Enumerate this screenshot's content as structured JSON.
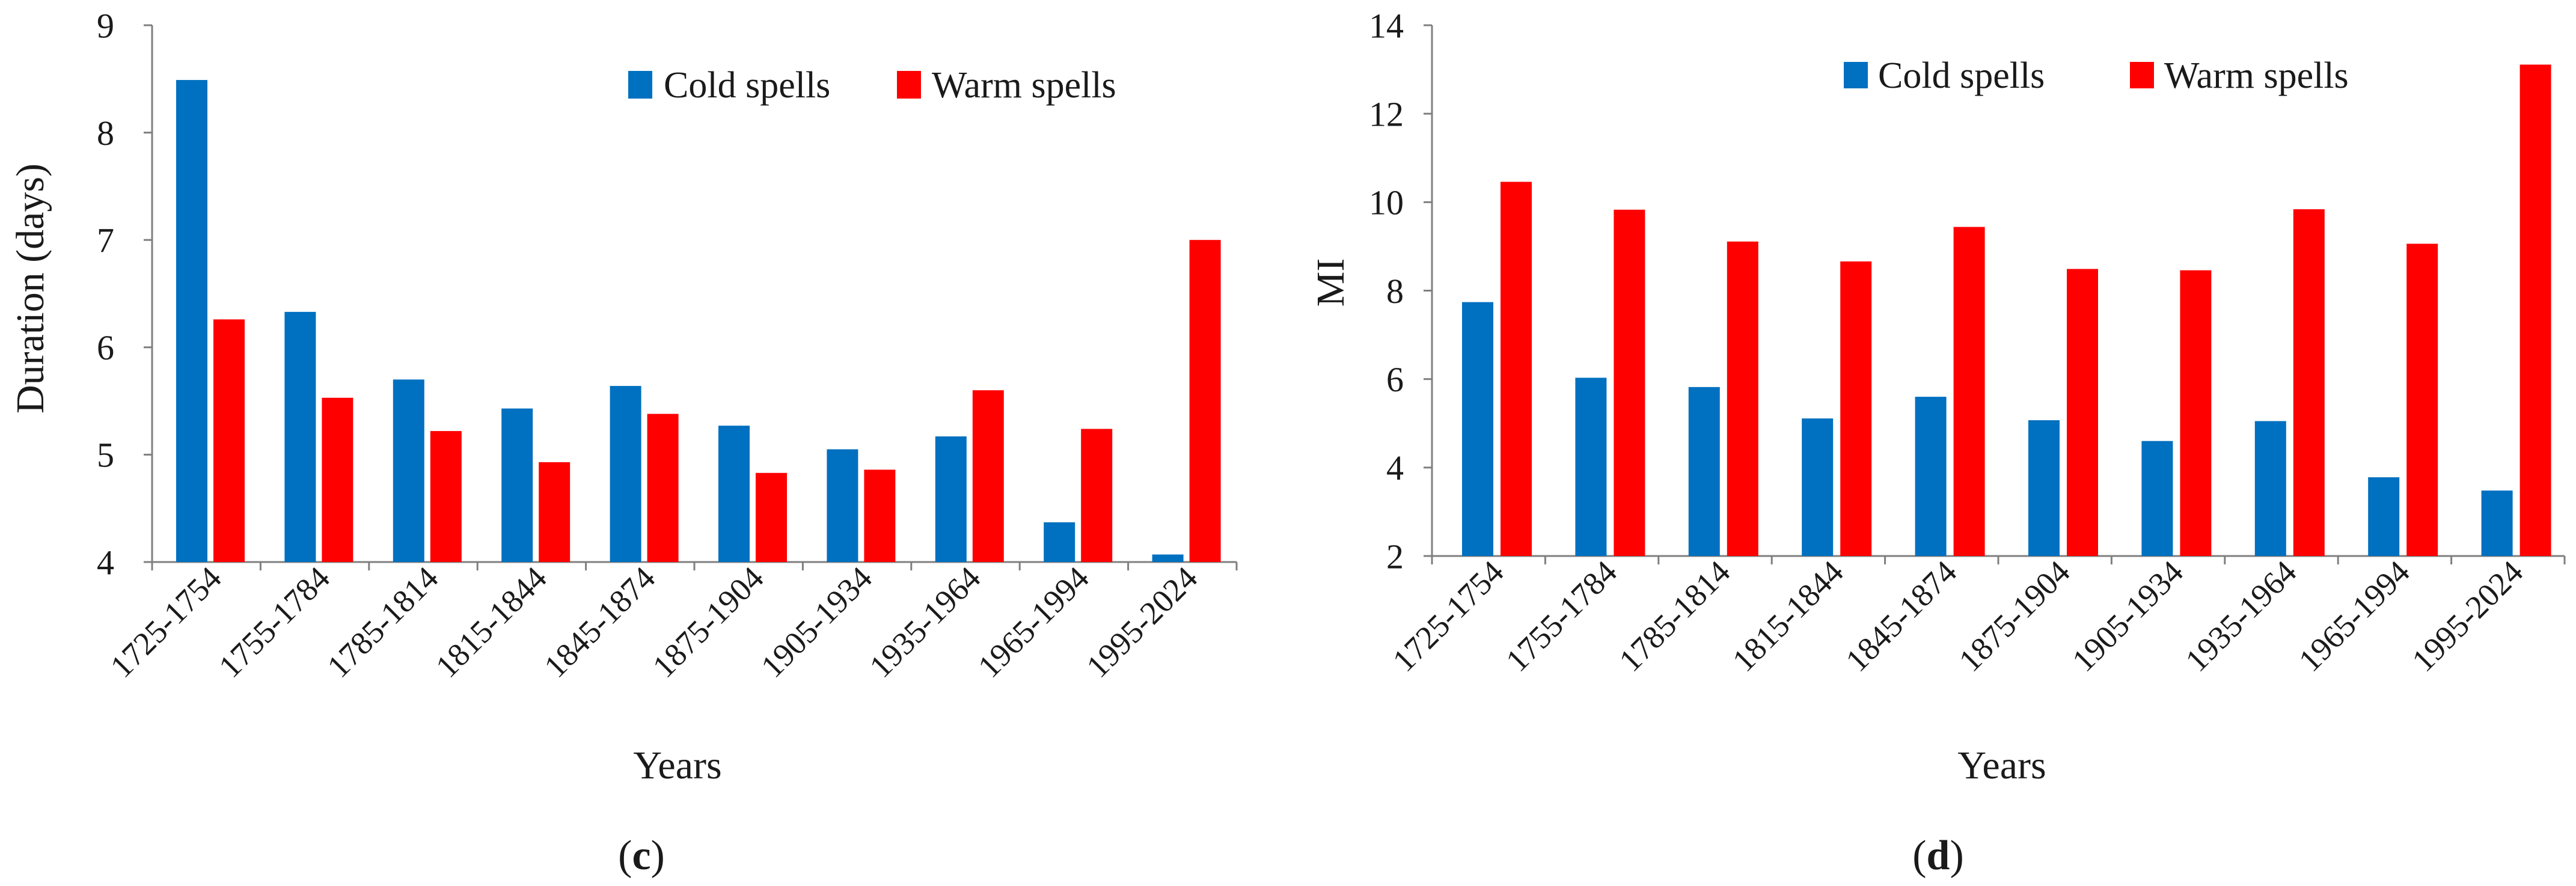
{
  "figure": {
    "colors": {
      "cold": "#0070c0",
      "warm": "#ff0000",
      "axis": "#7f7f7f",
      "text": "#1a1a1a"
    }
  },
  "chart_data": [
    {
      "panel": "c",
      "type": "bar",
      "title": "",
      "xlabel": "Years",
      "ylabel": "Duration (days)",
      "ylim": [
        4,
        9
      ],
      "yticks": [
        4,
        5,
        6,
        7,
        8,
        9
      ],
      "categories": [
        "1725-1754",
        "1755-1784",
        "1785-1814",
        "1815-1844",
        "1845-1874",
        "1875-1904",
        "1905-1934",
        "1935-1964",
        "1965-1994",
        "1995-2024"
      ],
      "series": [
        {
          "name": "Cold spells",
          "color": "#0070c0",
          "values": [
            8.49,
            6.33,
            5.7,
            5.43,
            5.64,
            5.27,
            5.05,
            5.17,
            4.37,
            4.07
          ]
        },
        {
          "name": "Warm spells",
          "color": "#ff0000",
          "values": [
            6.26,
            5.53,
            5.22,
            4.93,
            5.38,
            4.83,
            4.86,
            5.6,
            5.24,
            7.0
          ]
        }
      ],
      "legend": "top-right",
      "grid": false,
      "caption_text": "c"
    },
    {
      "panel": "d",
      "type": "bar",
      "title": "",
      "xlabel": "Years",
      "ylabel": "MI",
      "ylim": [
        2,
        14
      ],
      "yticks": [
        2,
        4,
        6,
        8,
        10,
        12,
        14
      ],
      "categories": [
        "1725-1754",
        "1755-1784",
        "1785-1814",
        "1815-1844",
        "1845-1874",
        "1875-1904",
        "1905-1934",
        "1935-1964",
        "1965-1994",
        "1995-2024"
      ],
      "series": [
        {
          "name": "Cold spells",
          "color": "#0070c0",
          "values": [
            7.74,
            6.03,
            5.82,
            5.11,
            5.6,
            5.07,
            4.6,
            5.05,
            3.78,
            3.48
          ]
        },
        {
          "name": "Warm spells",
          "color": "#ff0000",
          "values": [
            10.46,
            9.83,
            9.11,
            8.66,
            9.44,
            8.49,
            8.46,
            9.84,
            9.06,
            13.11
          ]
        }
      ],
      "legend": "top-center",
      "grid": false,
      "caption_text": "d"
    }
  ]
}
